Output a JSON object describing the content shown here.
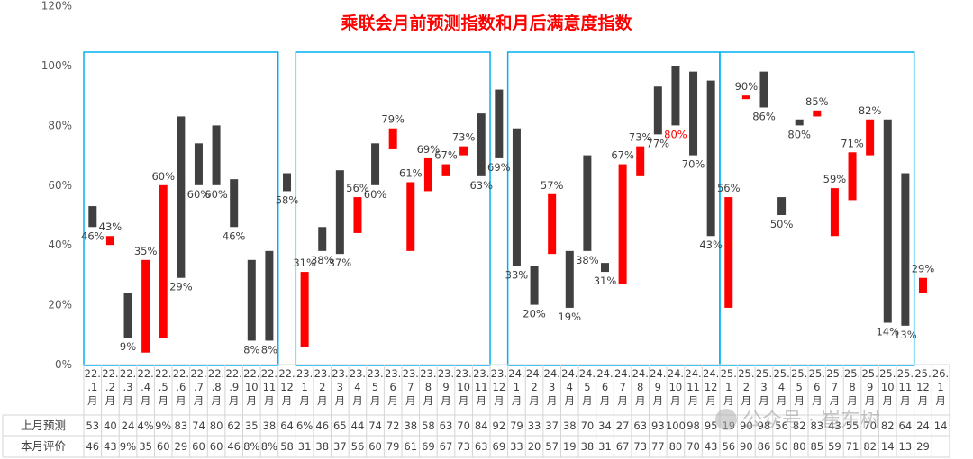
{
  "chart_data": {
    "type": "bar",
    "title": "乘联会月前预测指数和月后满意度指数",
    "y_ticks": [
      "0%",
      "20%",
      "40%",
      "60%",
      "80%",
      "100%",
      "120%"
    ],
    "ylim": [
      0,
      120
    ],
    "grid": false,
    "legend": "none",
    "categories": [
      [
        "22.",
        ".1",
        "月"
      ],
      [
        "22.",
        ".2",
        "月"
      ],
      [
        "22.",
        ".3",
        "月"
      ],
      [
        "22.",
        ".4",
        "月"
      ],
      [
        "22.",
        ".5",
        "月"
      ],
      [
        "22.",
        ".6",
        "月"
      ],
      [
        "22.",
        ".7",
        "月"
      ],
      [
        "22.",
        ".8",
        "月"
      ],
      [
        "22.",
        ".9",
        "月"
      ],
      [
        "22.",
        "10",
        "月"
      ],
      [
        "22.",
        "11",
        "月"
      ],
      [
        "22.",
        "12",
        "月"
      ],
      [
        "23.",
        "1",
        "月"
      ],
      [
        "23.",
        "2",
        "月"
      ],
      [
        "23.",
        "3",
        "月"
      ],
      [
        "23.",
        "4",
        "月"
      ],
      [
        "23.",
        "5",
        "月"
      ],
      [
        "23.",
        "6",
        "月"
      ],
      [
        "23.",
        "7",
        "月"
      ],
      [
        "23.",
        "8",
        "月"
      ],
      [
        "23.",
        "9",
        "月"
      ],
      [
        "23.",
        "10",
        "月"
      ],
      [
        "23.",
        "11",
        "月"
      ],
      [
        "23.",
        "12",
        "月"
      ],
      [
        "24.",
        "1",
        "月"
      ],
      [
        "24.",
        "2",
        "月"
      ],
      [
        "24.",
        "3",
        "月"
      ],
      [
        "24.",
        "4",
        "月"
      ],
      [
        "24.",
        "5",
        "月"
      ],
      [
        "24.",
        "6",
        "月"
      ],
      [
        "24.",
        "7",
        "月"
      ],
      [
        "24.",
        "8",
        "月"
      ],
      [
        "24.",
        "9",
        "月"
      ],
      [
        "24.",
        "10",
        "月"
      ],
      [
        "24.",
        "11",
        "月"
      ],
      [
        "24.",
        "12",
        "月"
      ],
      [
        "25.",
        "1",
        "月"
      ],
      [
        "25.",
        "2",
        "月"
      ],
      [
        "25.",
        "3",
        "月"
      ],
      [
        "25.",
        "4",
        "月"
      ],
      [
        "25.",
        "5",
        "月"
      ],
      [
        "25.",
        "6",
        "月"
      ],
      [
        "25.",
        "7",
        "月"
      ],
      [
        "25.",
        "8",
        "月"
      ],
      [
        "25.",
        "9",
        "月"
      ],
      [
        "25.",
        "10",
        "月"
      ],
      [
        "25.",
        "11",
        "月"
      ],
      [
        "25.",
        "12",
        "月"
      ],
      [
        "26.",
        "1",
        "月"
      ]
    ],
    "series": [
      {
        "name": "上月预测",
        "values": [
          53,
          40,
          24,
          4,
          9,
          83,
          74,
          80,
          62,
          35,
          38,
          64,
          6,
          46,
          65,
          44,
          74,
          72,
          38,
          58,
          63,
          70,
          84,
          92,
          79,
          33,
          37,
          38,
          70,
          34,
          27,
          63,
          93,
          100,
          98,
          95,
          19,
          90,
          98,
          56,
          82,
          83,
          43,
          55,
          70,
          82,
          64,
          24,
          14
        ],
        "table_text": [
          "53",
          "40",
          "24",
          "4%",
          "9%",
          "83",
          "74",
          "80",
          "62",
          "35",
          "38",
          "64",
          "6%",
          "46",
          "65",
          "44",
          "74",
          "72",
          "38",
          "58",
          "63",
          "70",
          "84",
          "92",
          "79",
          "33",
          "37",
          "38",
          "70",
          "34",
          "27",
          "63",
          "93",
          "100",
          "98",
          "95",
          "19",
          "90",
          "98",
          "56",
          "82",
          "83",
          "43",
          "55",
          "70",
          "82",
          "64",
          "24",
          "14"
        ]
      },
      {
        "name": "本月评价",
        "values": [
          46,
          43,
          9,
          35,
          60,
          29,
          60,
          60,
          46,
          8,
          8,
          58,
          31,
          38,
          37,
          56,
          60,
          79,
          61,
          69,
          67,
          73,
          63,
          69,
          33,
          20,
          57,
          19,
          38,
          31,
          67,
          73,
          77,
          80,
          70,
          43,
          56,
          90,
          86,
          50,
          80,
          85,
          59,
          71,
          82,
          14,
          13,
          29,
          null
        ],
        "table_text": [
          "46",
          "43",
          "9%",
          "35",
          "60",
          "29",
          "60",
          "60",
          "46",
          "8%",
          "8%",
          "58",
          "31",
          "38",
          "37",
          "56",
          "60",
          "79",
          "61",
          "69",
          "67",
          "73",
          "63",
          "69",
          "33",
          "20",
          "57",
          "19",
          "38",
          "31",
          "67",
          "73",
          "77",
          "80",
          "70",
          "43",
          "56",
          "90",
          "86",
          "50",
          "80",
          "85",
          "59",
          "71",
          "82",
          "14",
          "13",
          "29",
          ""
        ]
      }
    ],
    "colors": {
      "rise": "#ff0000",
      "fall": "#404040",
      "box": "#00b0f0",
      "title": "#ff0000",
      "text": "#404040",
      "highlight_label": "#ff0000"
    },
    "highlight_label_index": 33,
    "boxes": [
      [
        0,
        10
      ],
      [
        12,
        22
      ],
      [
        24,
        35
      ],
      [
        36,
        46
      ]
    ]
  },
  "watermark": "公众号 · 崔东树"
}
